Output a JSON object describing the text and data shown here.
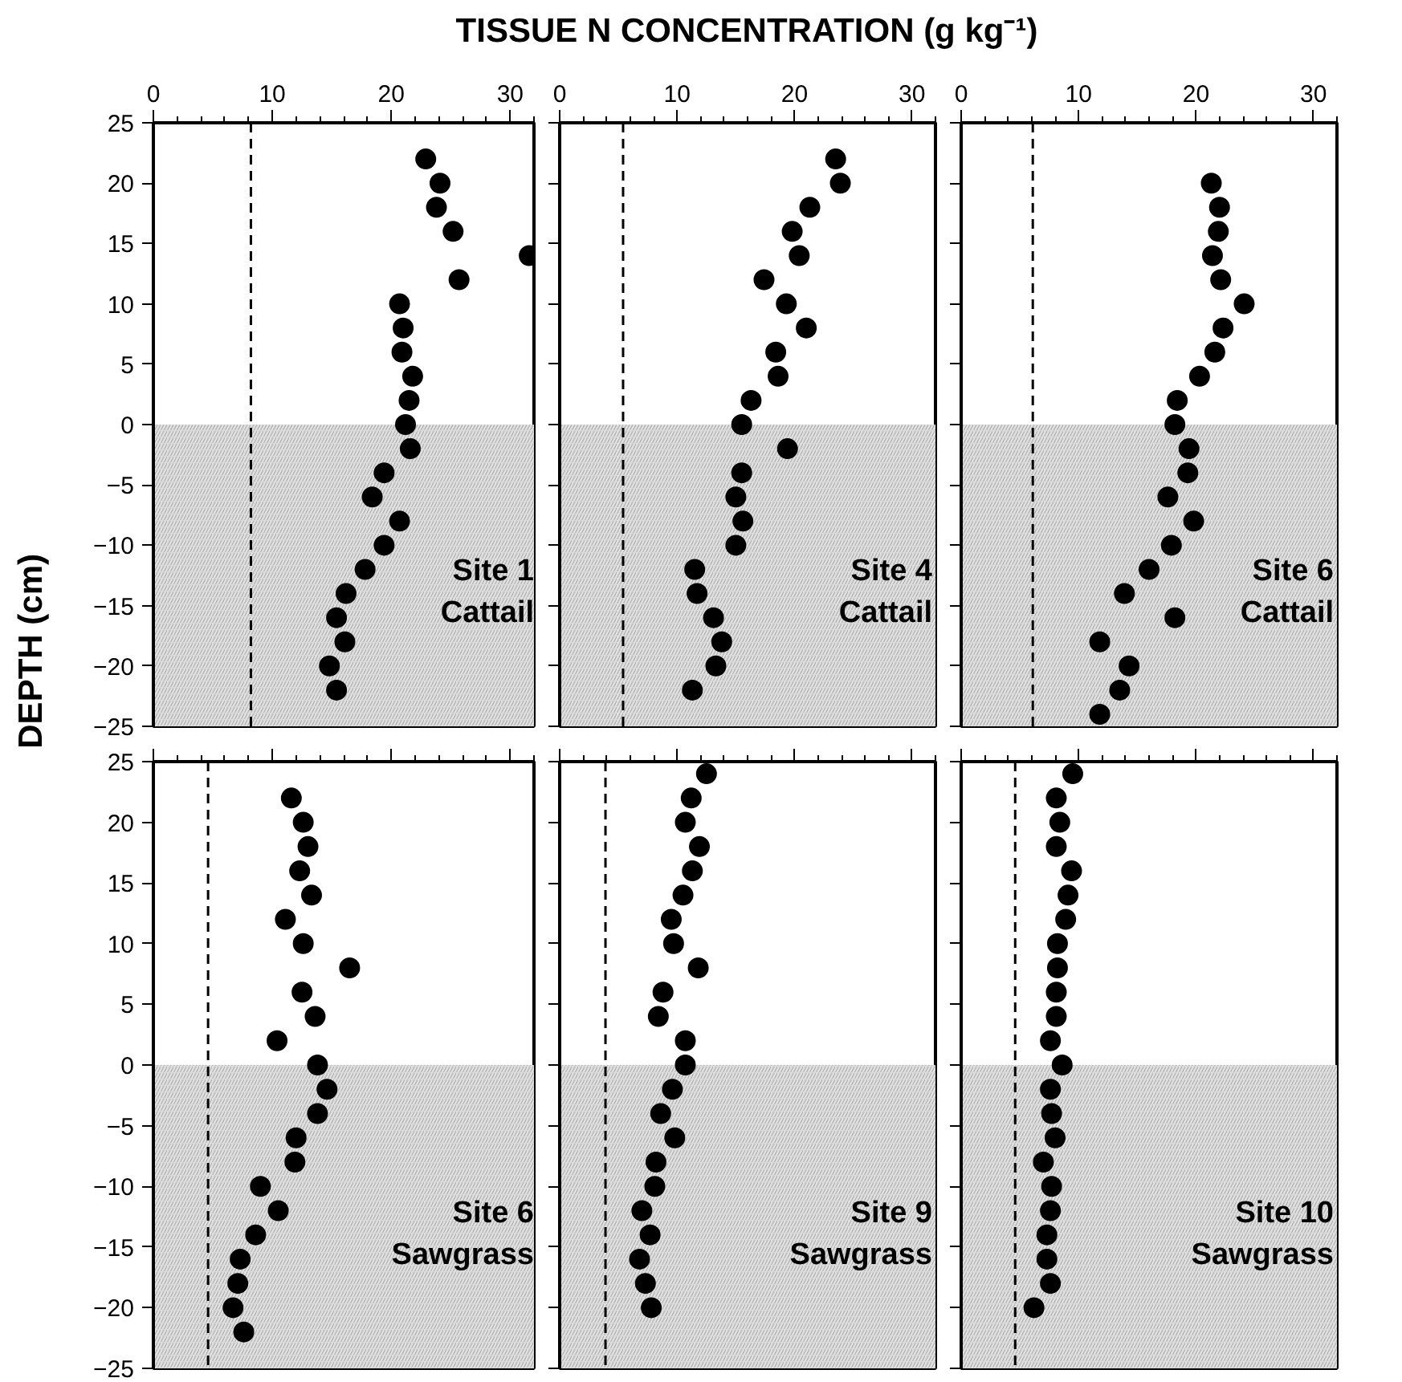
{
  "chart_data": [
    {
      "type": "scatter",
      "xlabel": "TISSUE N CONCENTRATION  (g kg⁻¹)",
      "ylabel": "DEPTH  (cm)",
      "xlim": [
        0,
        32
      ],
      "xticks": [
        0,
        10,
        20,
        30
      ],
      "ylim": [
        -25,
        25
      ],
      "yticks": [
        -25,
        -20,
        -15,
        -10,
        -5,
        0,
        5,
        10,
        15,
        20,
        25
      ],
      "marker": "circle",
      "annotations": [
        "Site 1",
        "Cattail"
      ],
      "bands": [
        {
          "axis": "y",
          "from": 0,
          "to": -25,
          "color": "#e0e0e0"
        }
      ],
      "ref_lines": [
        {
          "axis": "x",
          "value": 8.2,
          "line_style": "dashed",
          "color": "#000000"
        }
      ],
      "series": [
        {
          "color": "#000000",
          "x": [
            22.9,
            24.1,
            23.8,
            25.2,
            31.6,
            25.7,
            20.7,
            21.0,
            20.9,
            21.8,
            21.5,
            21.2,
            21.6,
            19.4,
            18.4,
            20.7,
            19.4,
            17.8,
            16.2,
            15.4,
            16.1,
            14.8,
            15.4
          ],
          "values": [
            22,
            20,
            18,
            16,
            14,
            12,
            10,
            8,
            6,
            4,
            2,
            0,
            -2,
            -4,
            -6,
            -8,
            -10,
            -12,
            -14,
            -16,
            -18,
            -20,
            -22
          ]
        }
      ]
    },
    {
      "type": "scatter",
      "xlim": [
        0,
        32
      ],
      "xticks": [
        0,
        10,
        20,
        30
      ],
      "ylim": [
        -25,
        25
      ],
      "yticks": [
        -25,
        -20,
        -15,
        -10,
        -5,
        0,
        5,
        10,
        15,
        20,
        25
      ],
      "tick_labels": "x",
      "marker": "circle",
      "annotations": [
        "Site 4",
        "Cattail"
      ],
      "bands": [
        {
          "axis": "y",
          "from": 0,
          "to": -25,
          "color": "#e0e0e0"
        }
      ],
      "ref_lines": [
        {
          "axis": "x",
          "value": 5.4,
          "line_style": "dashed",
          "color": "#000000"
        }
      ],
      "series": [
        {
          "color": "#000000",
          "x": [
            23.5,
            23.9,
            21.3,
            19.8,
            20.4,
            17.4,
            19.3,
            21.0,
            18.4,
            18.6,
            16.3,
            15.5,
            19.4,
            15.5,
            15.0,
            15.6,
            15.0,
            11.5,
            11.7,
            13.1,
            13.8,
            13.3,
            11.3
          ],
          "values": [
            22,
            20,
            18,
            16,
            14,
            12,
            10,
            8,
            6,
            4,
            2,
            0,
            -2,
            -4,
            -6,
            -8,
            -10,
            -12,
            -14,
            -16,
            -18,
            -20,
            -22
          ]
        }
      ]
    },
    {
      "type": "scatter",
      "xlim": [
        0,
        32
      ],
      "xticks": [
        0,
        10,
        20,
        30
      ],
      "ylim": [
        -25,
        25
      ],
      "yticks": [
        -25,
        -20,
        -15,
        -10,
        -5,
        0,
        5,
        10,
        15,
        20,
        25
      ],
      "tick_labels": "x",
      "marker": "circle",
      "annotations": [
        "Site 6",
        "Cattail"
      ],
      "bands": [
        {
          "axis": "y",
          "from": 0,
          "to": -25,
          "color": "#e0e0e0"
        }
      ],
      "ref_lines": [
        {
          "axis": "x",
          "value": 6.1,
          "line_style": "dashed",
          "color": "#000000"
        }
      ],
      "series": [
        {
          "color": "#000000",
          "x": [
            21.3,
            22.0,
            21.9,
            21.4,
            22.1,
            24.1,
            22.3,
            21.6,
            20.3,
            18.4,
            18.2,
            19.4,
            19.3,
            17.6,
            19.8,
            17.9,
            16.0,
            13.9,
            18.2,
            11.8,
            14.3,
            13.5,
            11.8
          ],
          "values": [
            20,
            18,
            16,
            14,
            12,
            10,
            8,
            6,
            4,
            2,
            0,
            -2,
            -4,
            -6,
            -8,
            -10,
            -12,
            -14,
            -16,
            -18,
            -20,
            -22,
            -24
          ]
        }
      ]
    },
    {
      "type": "scatter",
      "xlim": [
        0,
        32
      ],
      "xticks": [
        0,
        10,
        20,
        30
      ],
      "ylim": [
        -25,
        25
      ],
      "yticks": [
        -25,
        -20,
        -15,
        -10,
        -5,
        0,
        5,
        10,
        15,
        20,
        25
      ],
      "tick_labels": "y",
      "marker": "circle",
      "annotations": [
        "Site 6",
        "Sawgrass"
      ],
      "bands": [
        {
          "axis": "y",
          "from": 0,
          "to": -25,
          "color": "#e0e0e0"
        }
      ],
      "ref_lines": [
        {
          "axis": "x",
          "value": 4.6,
          "line_style": "dashed",
          "color": "#000000"
        }
      ],
      "series": [
        {
          "color": "#000000",
          "x": [
            11.6,
            12.6,
            13.0,
            12.3,
            13.3,
            11.1,
            12.6,
            16.5,
            12.5,
            13.6,
            10.4,
            13.8,
            14.6,
            13.8,
            12.0,
            11.9,
            9.0,
            10.5,
            8.6,
            7.3,
            7.1,
            6.7,
            7.6
          ],
          "values": [
            22,
            20,
            18,
            16,
            14,
            12,
            10,
            8,
            6,
            4,
            2,
            0,
            -2,
            -4,
            -6,
            -8,
            -10,
            -12,
            -14,
            -16,
            -18,
            -20,
            -22
          ]
        }
      ]
    },
    {
      "type": "scatter",
      "xlim": [
        0,
        32
      ],
      "xticks": [
        0,
        10,
        20,
        30
      ],
      "ylim": [
        -25,
        25
      ],
      "yticks": [
        -25,
        -20,
        -15,
        -10,
        -5,
        0,
        5,
        10,
        15,
        20,
        25
      ],
      "tick_labels": false,
      "marker": "circle",
      "annotations": [
        "Site 9",
        "Sawgrass"
      ],
      "bands": [
        {
          "axis": "y",
          "from": 0,
          "to": -25,
          "color": "#e0e0e0"
        }
      ],
      "ref_lines": [
        {
          "axis": "x",
          "value": 3.9,
          "line_style": "dashed",
          "color": "#000000"
        }
      ],
      "series": [
        {
          "color": "#000000",
          "x": [
            12.5,
            11.2,
            10.7,
            11.9,
            11.3,
            10.5,
            9.5,
            9.7,
            11.8,
            8.8,
            8.4,
            10.7,
            10.7,
            9.6,
            8.6,
            9.8,
            8.2,
            8.1,
            7.0,
            7.7,
            6.8,
            7.3,
            7.8
          ],
          "values": [
            24,
            22,
            20,
            18,
            16,
            14,
            12,
            10,
            8,
            6,
            4,
            2,
            0,
            -2,
            -4,
            -6,
            -8,
            -10,
            -12,
            -14,
            -16,
            -18,
            -20
          ]
        }
      ]
    },
    {
      "type": "scatter",
      "xlim": [
        0,
        32
      ],
      "xticks": [
        0,
        10,
        20,
        30
      ],
      "ylim": [
        -25,
        25
      ],
      "yticks": [
        -25,
        -20,
        -15,
        -10,
        -5,
        0,
        5,
        10,
        15,
        20,
        25
      ],
      "tick_labels": false,
      "marker": "circle",
      "annotations": [
        "Site 10",
        "Sawgrass"
      ],
      "bands": [
        {
          "axis": "y",
          "from": 0,
          "to": -25,
          "color": "#e0e0e0"
        }
      ],
      "ref_lines": [
        {
          "axis": "x",
          "value": 4.6,
          "line_style": "dashed",
          "color": "#000000"
        }
      ],
      "series": [
        {
          "color": "#000000",
          "x": [
            9.5,
            8.1,
            8.4,
            8.1,
            9.4,
            9.1,
            8.9,
            8.2,
            8.2,
            8.1,
            8.1,
            7.6,
            8.6,
            7.6,
            7.7,
            8.0,
            7.0,
            7.7,
            7.6,
            7.3,
            7.3,
            7.6,
            6.2
          ],
          "values": [
            24,
            22,
            20,
            18,
            16,
            14,
            12,
            10,
            8,
            6,
            4,
            2,
            0,
            -2,
            -4,
            -6,
            -8,
            -10,
            -12,
            -14,
            -16,
            -18,
            -20
          ]
        }
      ]
    }
  ]
}
